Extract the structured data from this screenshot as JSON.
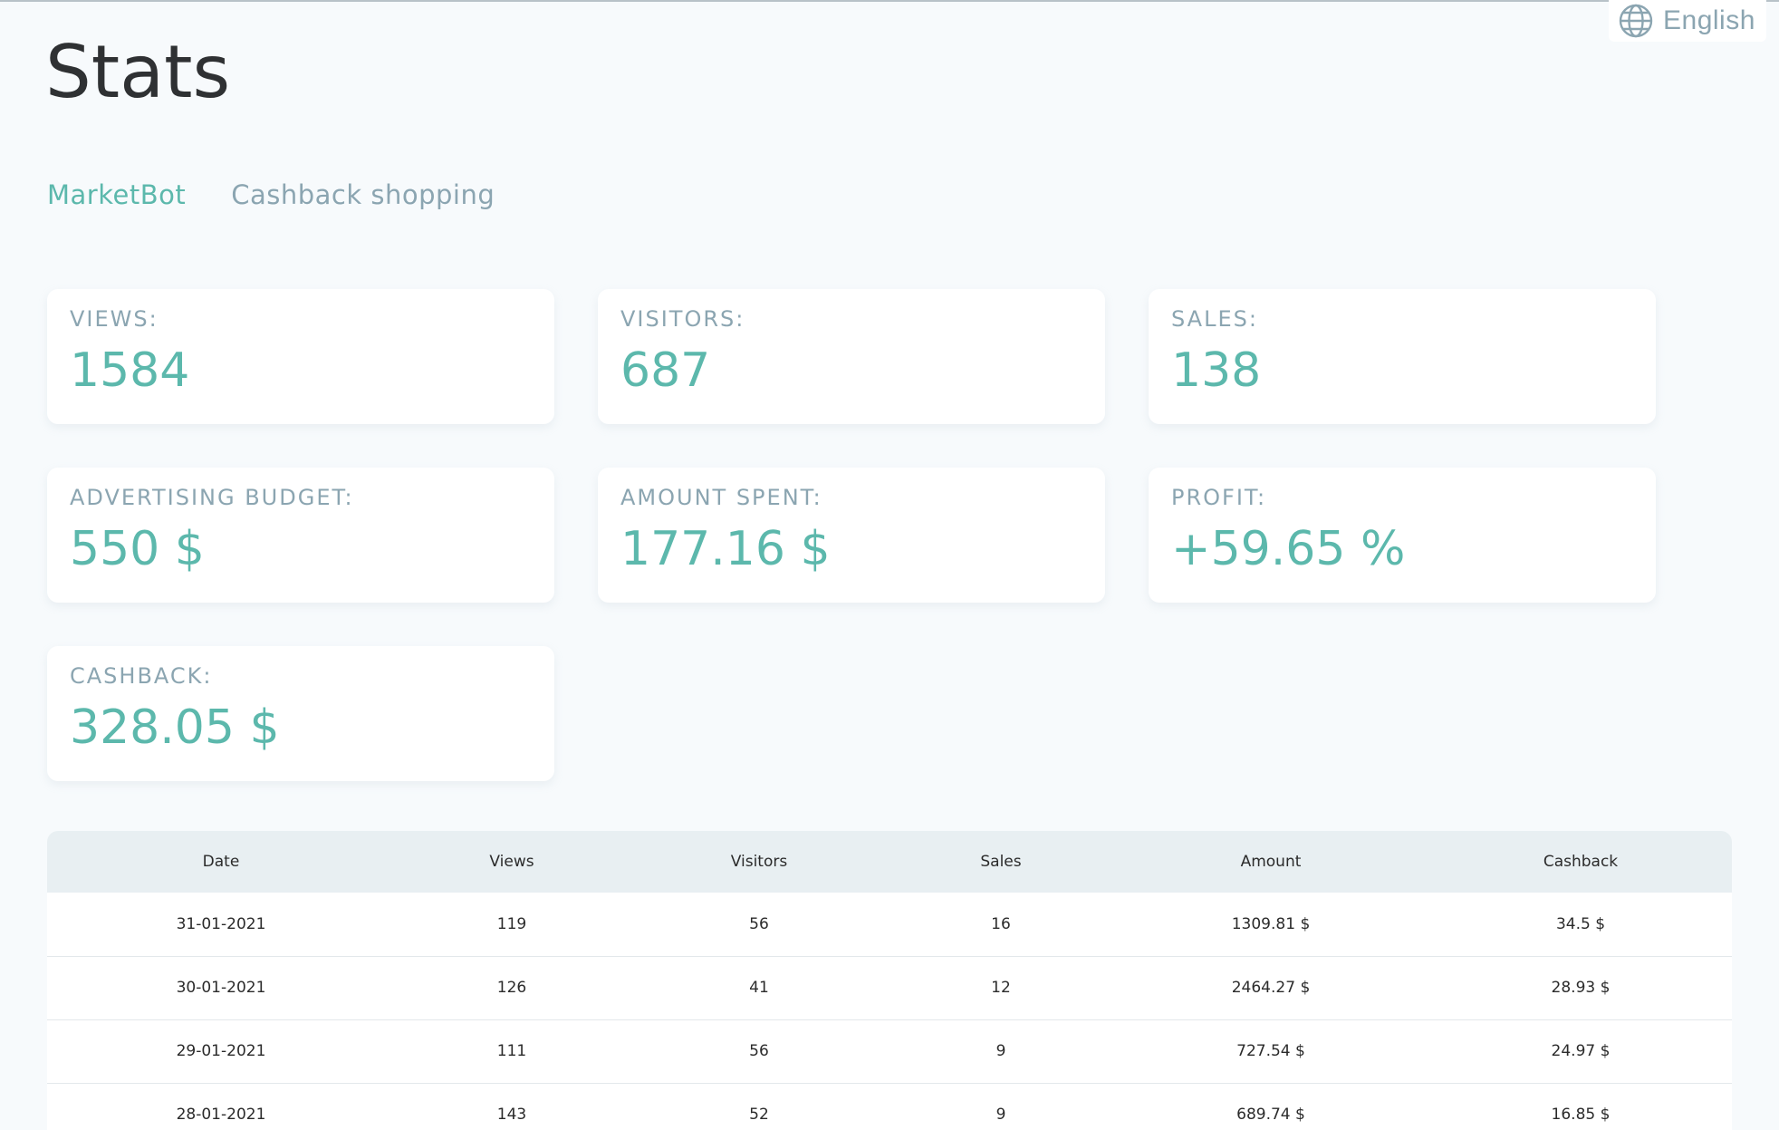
{
  "language": {
    "label": "English",
    "icon": "globe-icon"
  },
  "page": {
    "title": "Stats"
  },
  "tabs": [
    {
      "label": "MarketBot",
      "active": true
    },
    {
      "label": "Cashback shopping",
      "active": false
    }
  ],
  "colors": {
    "accent": "#5cb8ac",
    "muted": "#8ba5b1",
    "background": "#f7fafc",
    "table_header_bg": "#e8eff2"
  },
  "stats": [
    {
      "label": "VIEWS:",
      "value": "1584"
    },
    {
      "label": "VISITORS:",
      "value": "687"
    },
    {
      "label": "SALES:",
      "value": "138"
    },
    {
      "label": "ADVERTISING BUDGET:",
      "value": "550 $"
    },
    {
      "label": "AMOUNT SPENT:",
      "value": "177.16 $"
    },
    {
      "label": "PROFIT:",
      "value": "+59.65 %"
    },
    {
      "label": "CASHBACK:",
      "value": "328.05 $"
    }
  ],
  "table": {
    "columns": [
      "Date",
      "Views",
      "Visitors",
      "Sales",
      "Amount",
      "Cashback"
    ],
    "rows": [
      [
        "31-01-2021",
        "119",
        "56",
        "16",
        "1309.81 $",
        "34.5 $"
      ],
      [
        "30-01-2021",
        "126",
        "41",
        "12",
        "2464.27 $",
        "28.93 $"
      ],
      [
        "29-01-2021",
        "111",
        "56",
        "9",
        "727.54 $",
        "24.97 $"
      ],
      [
        "28-01-2021",
        "143",
        "52",
        "9",
        "689.74 $",
        "16.85 $"
      ]
    ]
  }
}
